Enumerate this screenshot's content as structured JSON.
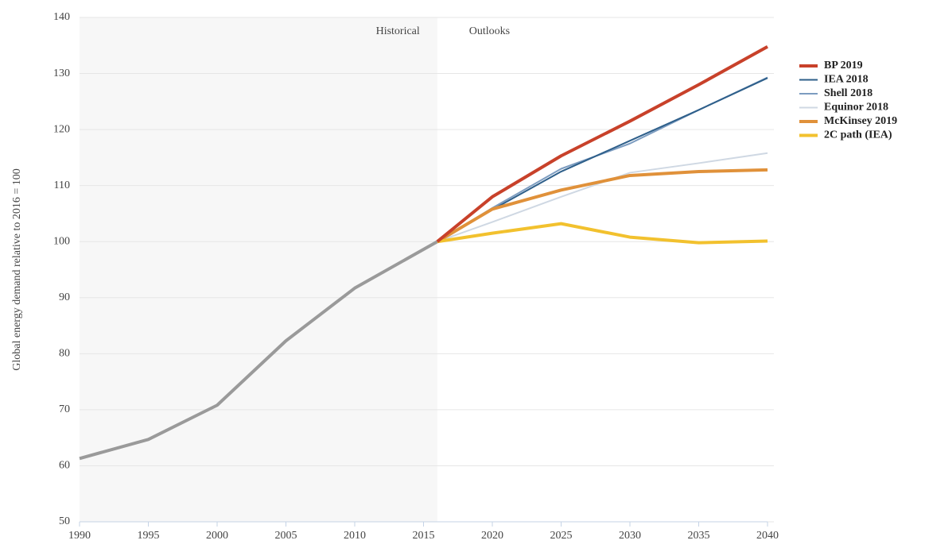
{
  "chart_data": {
    "type": "line",
    "y_label": "Global energy demand relative to 2016 = 100",
    "annotations": [
      "Historical",
      "Outlooks"
    ],
    "shaded_region": [
      1990,
      2016
    ],
    "x": [
      1990,
      1995,
      2000,
      2005,
      2010,
      2016,
      2020,
      2025,
      2030,
      2035,
      2040
    ],
    "series": [
      {
        "color": "#9a9a9a",
        "line_width": 4,
        "values": [
          61.3,
          64.7,
          70.8,
          82.3,
          91.7,
          100,
          null,
          null,
          null,
          null,
          null
        ]
      },
      {
        "name": "Equinor 2018",
        "color": "#cfd8e3",
        "line_width": 2,
        "values": [
          null,
          null,
          null,
          null,
          null,
          100,
          103.5,
          108,
          112.3,
          114,
          115.8
        ]
      },
      {
        "name": "Shell 2018",
        "color": "#7c9cc0",
        "line_width": 2,
        "values": [
          null,
          null,
          null,
          null,
          null,
          100,
          106,
          113,
          117.5,
          123.5,
          129.3
        ]
      },
      {
        "name": "IEA 2018",
        "color": "#2e5f8a",
        "line_width": 2,
        "values": [
          null,
          null,
          null,
          null,
          null,
          100,
          105.7,
          112.5,
          118,
          123.5,
          129.2
        ]
      },
      {
        "name": "McKinsey 2019",
        "color": "#e0913a",
        "line_width": 4,
        "values": [
          null,
          null,
          null,
          null,
          null,
          100,
          105.8,
          109.2,
          111.8,
          112.5,
          112.8
        ]
      },
      {
        "name": "2C path (IEA)",
        "color": "#f2c12e",
        "line_width": 4,
        "values": [
          null,
          null,
          null,
          null,
          null,
          100,
          101.5,
          103.2,
          100.8,
          99.8,
          100.1
        ]
      },
      {
        "name": "BP 2019",
        "color": "#c8412a",
        "line_width": 4,
        "values": [
          null,
          null,
          null,
          null,
          null,
          100,
          108,
          115.3,
          121.5,
          128,
          134.8
        ]
      }
    ],
    "legend_order": [
      6,
      3,
      2,
      1,
      4,
      5
    ],
    "xlim": [
      1990,
      2040
    ],
    "xticks": [
      1990,
      1995,
      2000,
      2005,
      2010,
      2015,
      2020,
      2025,
      2030,
      2035,
      2040
    ],
    "ylim": [
      50,
      140
    ],
    "yticks": [
      50,
      60,
      70,
      80,
      90,
      100,
      110,
      120,
      130,
      140
    ],
    "grid": true,
    "legend": "right"
  }
}
